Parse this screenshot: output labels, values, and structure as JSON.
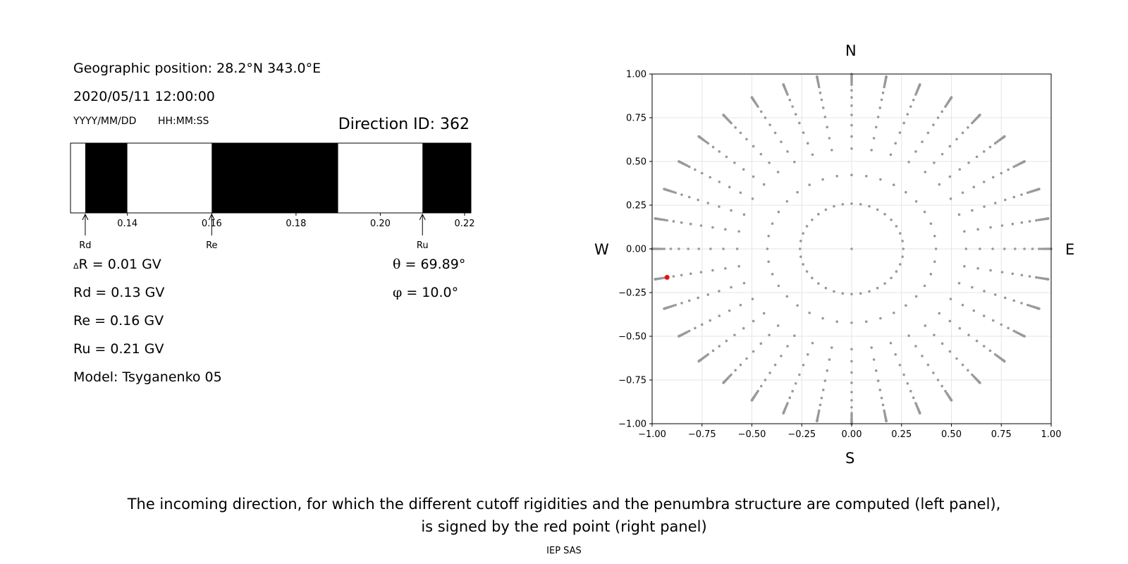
{
  "left_panel": {
    "geo_position": "Geographic position: 28.2°N 343.0°E",
    "datetime": "2020/05/11 12:00:00",
    "date_format": "YYYY/MM/DD",
    "time_format": "HH:MM:SS",
    "direction_id": "Direction ID: 362",
    "delta_symbol": "Δ",
    "delta_r": "R = 0.01 GV",
    "rd_value": "Rd = 0.13 GV",
    "re_value": "Re = 0.16 GV",
    "ru_value": "Ru = 0.21 GV",
    "model": "Model: Tsyganenko 05",
    "theta_symbol": "θ",
    "theta_value": " = 69.89°",
    "phi_symbol": "φ",
    "phi_value": " = 10.0°"
  },
  "right_panel": {
    "north": "N",
    "south": "S",
    "west": "W",
    "east": "E"
  },
  "caption_line1": "The incoming direction, for which the different cutoff rigidities and the penumbra structure are computed (left panel),",
  "caption_line2": "is signed by the red point (right panel)",
  "footer": "IEP SAS",
  "colors": {
    "forbidden": "#000000",
    "allowed": "#ffffff",
    "grid_point": "#999999",
    "selected_point": "#e3140f"
  },
  "chart_data": [
    {
      "type": "bar",
      "title": "",
      "xlabel": "",
      "xlim": [
        0.1265,
        0.2215
      ],
      "xticks": [
        0.14,
        0.16,
        0.18,
        0.2,
        0.22
      ],
      "xtick_labels": [
        "0.14",
        "0.16",
        "0.18",
        "0.20",
        "0.22"
      ],
      "segments": [
        {
          "start": 0.1265,
          "end": 0.13,
          "state": "allowed"
        },
        {
          "start": 0.13,
          "end": 0.14,
          "state": "forbidden"
        },
        {
          "start": 0.14,
          "end": 0.16,
          "state": "allowed"
        },
        {
          "start": 0.16,
          "end": 0.19,
          "state": "forbidden"
        },
        {
          "start": 0.19,
          "end": 0.21,
          "state": "allowed"
        },
        {
          "start": 0.21,
          "end": 0.2215,
          "state": "forbidden"
        }
      ],
      "markers": [
        {
          "label": "Rd",
          "value": 0.13
        },
        {
          "label": "Re",
          "value": 0.16
        },
        {
          "label": "Ru",
          "value": 0.21
        }
      ]
    },
    {
      "type": "scatter",
      "title": "",
      "xlim": [
        -1.0,
        1.0
      ],
      "ylim": [
        -1.0,
        1.0
      ],
      "xticks": [
        -1.0,
        -0.75,
        -0.5,
        -0.25,
        0.0,
        0.25,
        0.5,
        0.75,
        1.0
      ],
      "xtick_labels": [
        "−1.00",
        "−0.75",
        "−0.50",
        "−0.25",
        "0.00",
        "0.25",
        "0.50",
        "0.75",
        "1.00"
      ],
      "yticks": [
        -1.0,
        -0.75,
        -0.5,
        -0.25,
        0.0,
        0.25,
        0.5,
        0.75,
        1.0
      ],
      "ytick_labels": [
        "−1.00",
        "−0.75",
        "−0.50",
        "−0.25",
        "0.00",
        "0.25",
        "0.50",
        "0.75",
        "1.00"
      ],
      "grid": true,
      "projection": "sin(zenith) radial",
      "zenith_values_deg": [
        0,
        15,
        25,
        35,
        40,
        45,
        50,
        55,
        60,
        65,
        70,
        72,
        74,
        76,
        78,
        80,
        82,
        84,
        86,
        88,
        90
      ],
      "azimuth_step_deg": 10,
      "selected_point": {
        "theta_deg": 69.89,
        "phi_deg": 10.0,
        "x": -0.925,
        "y": -0.163
      }
    }
  ]
}
